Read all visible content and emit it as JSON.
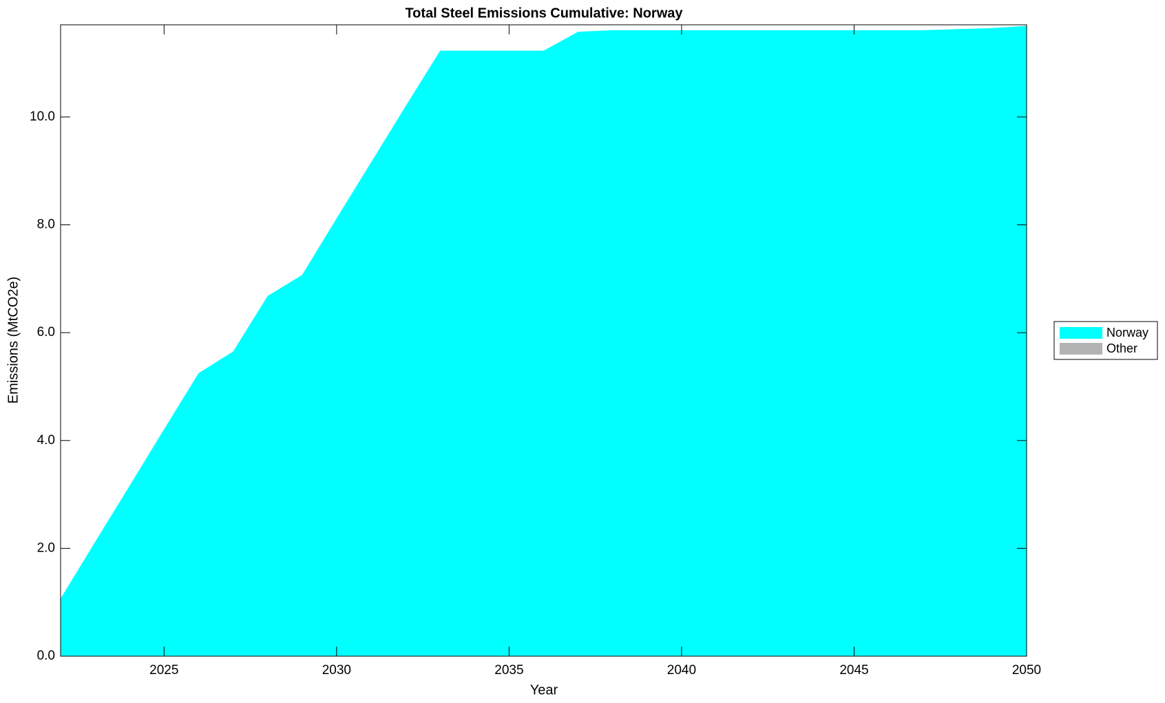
{
  "chart_data": {
    "type": "stacked_area",
    "title": "Total Steel Emissions Cumulative: Norway",
    "xlabel": "Year",
    "ylabel": "Emissions (MtCO2e)",
    "x": [
      2022,
      2023,
      2024,
      2025,
      2026,
      2027,
      2028,
      2029,
      2030,
      2031,
      2032,
      2033,
      2034,
      2035,
      2036,
      2037,
      2038,
      2039,
      2040,
      2041,
      2042,
      2043,
      2044,
      2045,
      2046,
      2047,
      2048,
      2049,
      2050
    ],
    "series": [
      {
        "name": "Norway",
        "color": "#00ffff",
        "values": [
          1.07,
          2.12,
          3.16,
          4.21,
          5.25,
          5.65,
          6.68,
          7.07,
          8.12,
          9.16,
          10.2,
          11.23,
          11.23,
          11.23,
          11.23,
          11.58,
          11.61,
          11.61,
          11.61,
          11.61,
          11.61,
          11.61,
          11.61,
          11.61,
          11.61,
          11.61,
          11.63,
          11.65,
          11.69
        ]
      },
      {
        "name": "Other",
        "color": "#b3b3b3",
        "values": [
          0,
          0,
          0,
          0,
          0,
          0,
          0,
          0,
          0,
          0,
          0,
          0,
          0,
          0,
          0,
          0,
          0,
          0,
          0,
          0,
          0,
          0,
          0,
          0,
          0,
          0,
          0,
          0,
          0
        ]
      }
    ],
    "xlim": [
      2022,
      2050
    ],
    "ylim": [
      0,
      11.71
    ],
    "xticks": [
      2025,
      2030,
      2035,
      2040,
      2045,
      2050
    ],
    "yticks": [
      {
        "value": 0,
        "label": "0.0"
      },
      {
        "value": 2,
        "label": "2.0"
      },
      {
        "value": 4,
        "label": "4.0"
      },
      {
        "value": 6,
        "label": "6.0"
      },
      {
        "value": 8,
        "label": "8.0"
      },
      {
        "value": 10,
        "label": "10.0"
      }
    ],
    "legend": "right"
  }
}
